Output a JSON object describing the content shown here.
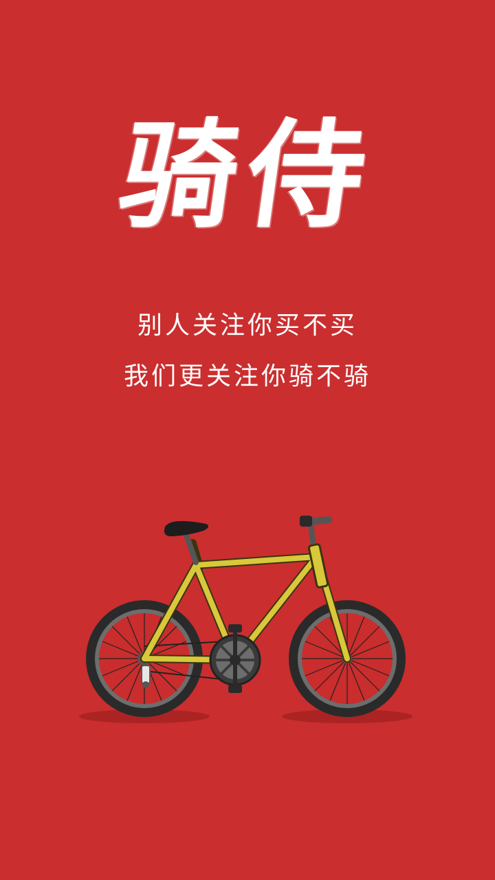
{
  "splash": {
    "logo_text": "骑侍",
    "slogan_line1": "别人关注你买不买",
    "slogan_line2": "我们更关注你骑不骑"
  },
  "colors": {
    "background": "#ca2e2f",
    "text": "#ffffff",
    "frame": "#d8c83a",
    "tire": "#2a2a2a",
    "rim": "#6d6d6d",
    "spoke": "#c92d2d"
  },
  "illustration": {
    "icon": "bicycle-icon"
  }
}
